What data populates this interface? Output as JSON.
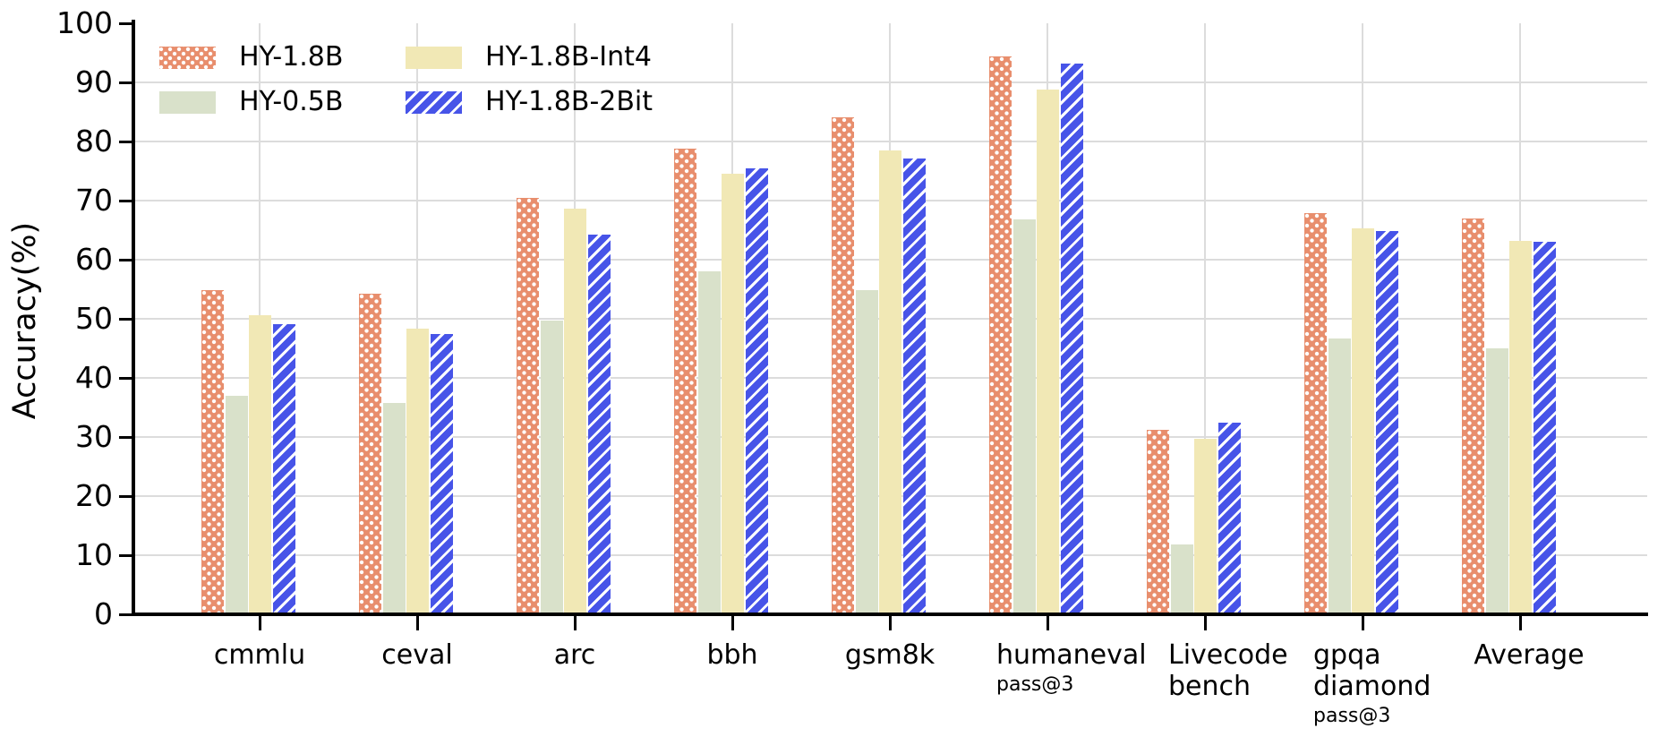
{
  "chart_data": {
    "type": "bar",
    "title": "",
    "ylabel": "Accuracy(%)",
    "ylim": [
      0,
      100
    ],
    "yticks": [
      0,
      10,
      20,
      30,
      40,
      50,
      60,
      70,
      80,
      90,
      100
    ],
    "grid": {
      "horizontal": true,
      "vertical_at_categories": true
    },
    "legend_position": "top-left inside plot, two columns",
    "categories": [
      {
        "lines": [
          "cmmlu"
        ],
        "sub": ""
      },
      {
        "lines": [
          "ceval"
        ],
        "sub": ""
      },
      {
        "lines": [
          "arc"
        ],
        "sub": ""
      },
      {
        "lines": [
          "bbh"
        ],
        "sub": ""
      },
      {
        "lines": [
          "gsm8k"
        ],
        "sub": ""
      },
      {
        "lines": [
          "humaneval"
        ],
        "sub": "pass@3"
      },
      {
        "lines": [
          "Livecode",
          "bench"
        ],
        "sub": ""
      },
      {
        "lines": [
          "gpqa",
          "diamond"
        ],
        "sub": "pass@3"
      },
      {
        "lines": [
          "Average"
        ],
        "sub": ""
      }
    ],
    "series": [
      {
        "name": "HY-1.8B",
        "pattern": "dots",
        "color": "#E88E6D",
        "pattern_color": "#FFFFFF",
        "values": [
          54.9,
          54.2,
          70.4,
          78.8,
          84.1,
          94.4,
          31.2,
          67.9,
          67.0
        ]
      },
      {
        "name": "HY-0.5B",
        "pattern": "solid",
        "color": "#D9E1CA",
        "values": [
          37.0,
          35.8,
          49.7,
          58.0,
          54.8,
          66.8,
          11.8,
          46.6,
          45.0
        ]
      },
      {
        "name": "HY-1.8B-Int4",
        "pattern": "solid",
        "color": "#F1E8B5",
        "values": [
          50.6,
          48.4,
          68.6,
          74.6,
          78.5,
          88.8,
          29.7,
          65.3,
          63.2
        ]
      },
      {
        "name": "HY-1.8B-2Bit",
        "pattern": "hatch",
        "color": "#4754E8",
        "pattern_color": "#FFFFFF",
        "values": [
          49.1,
          47.4,
          64.2,
          75.4,
          77.1,
          93.2,
          32.4,
          64.8,
          63.0
        ]
      }
    ]
  },
  "colors": {
    "background": "#FFFFFF",
    "gridline": "#DCDCDC",
    "axis": "#000000",
    "text": "#000000"
  }
}
